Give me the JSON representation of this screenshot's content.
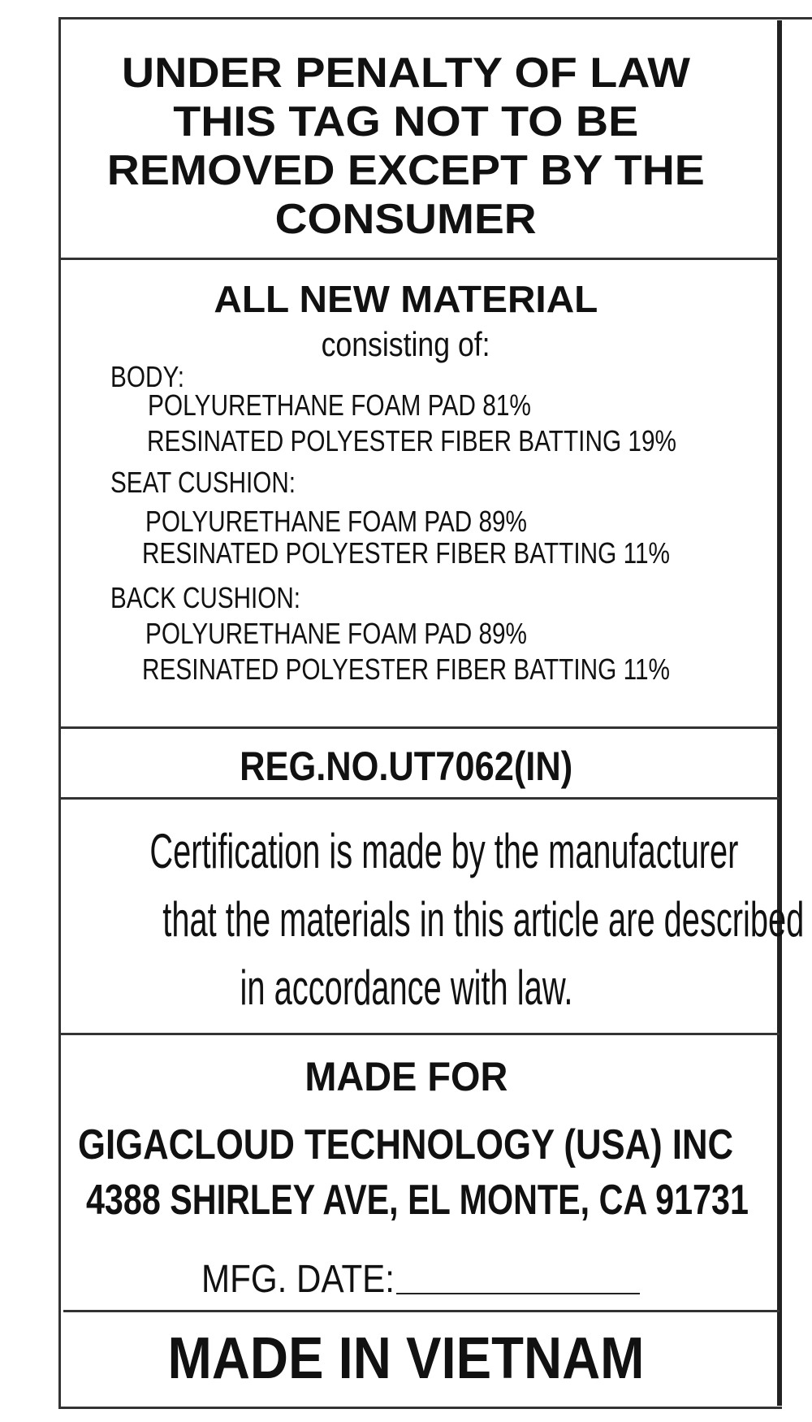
{
  "warning": {
    "lines": [
      "UNDER PENALTY OF LAW",
      "THIS TAG NOT TO BE",
      "REMOVED EXCEPT BY THE",
      "CONSUMER"
    ]
  },
  "materials": {
    "heading": "ALL NEW MATERIAL",
    "subheading": "consisting of:",
    "sections": [
      {
        "label": "BODY:",
        "items": [
          "POLYURETHANE FOAM PAD 81%",
          "RESINATED POLYESTER FIBER BATTING 19%"
        ]
      },
      {
        "label": "SEAT CUSHION:",
        "items": [
          "POLYURETHANE FOAM PAD 89%",
          "RESINATED POLYESTER FIBER BATTING 11%"
        ]
      },
      {
        "label": "BACK CUSHION:",
        "items": [
          "POLYURETHANE FOAM PAD 89%",
          "RESINATED POLYESTER FIBER BATTING 11%"
        ]
      }
    ]
  },
  "registration": "REG.NO.UT7062(IN)",
  "certification": {
    "lines": [
      "Certification is made by the manufacturer",
      "that the materials in this article are described",
      "in accordance with law."
    ]
  },
  "made_for": {
    "heading": "MADE FOR",
    "company": "GIGACLOUD TECHNOLOGY (USA) INC",
    "address": "4388 SHIRLEY AVE, EL MONTE, CA 91731",
    "mfg_date_label": "MFG. DATE:",
    "mfg_date_value": ""
  },
  "origin": "MADE IN VIETNAM"
}
